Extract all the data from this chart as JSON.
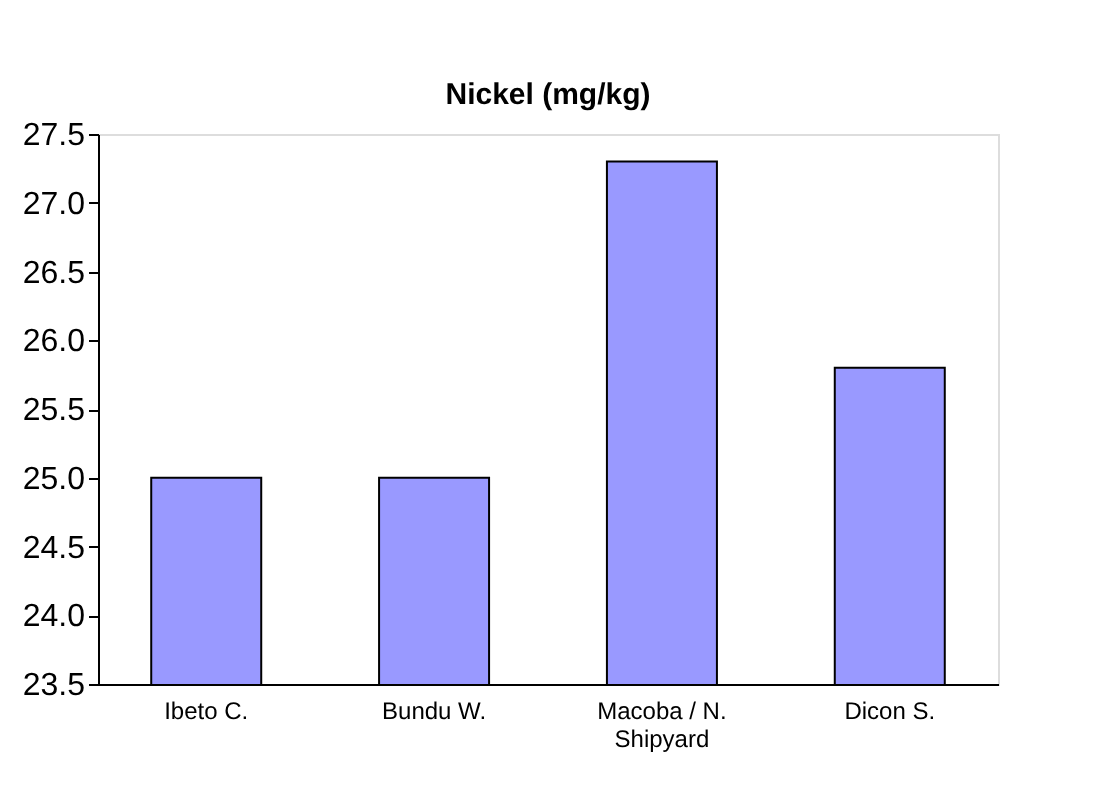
{
  "chart_data": {
    "type": "bar",
    "title": "Nickel   (mg/kg)",
    "categories": [
      "Ibeto C.",
      "Bundu W.",
      "Macoba / N. Shipyard",
      "Dicon S."
    ],
    "values": [
      25.0,
      25.0,
      27.3,
      25.8
    ],
    "color": "#9999ff",
    "ylim": [
      23.5,
      27.5
    ],
    "yticks": [
      23.5,
      {
        "value": 24,
        "label": "24.0"
      },
      24.5,
      {
        "value": 25,
        "label": "25.0"
      },
      25.5,
      {
        "value": 26,
        "label": "26.0"
      },
      26.5,
      {
        "value": 27,
        "label": "27.0"
      },
      27.5
    ],
    "grid": false
  }
}
